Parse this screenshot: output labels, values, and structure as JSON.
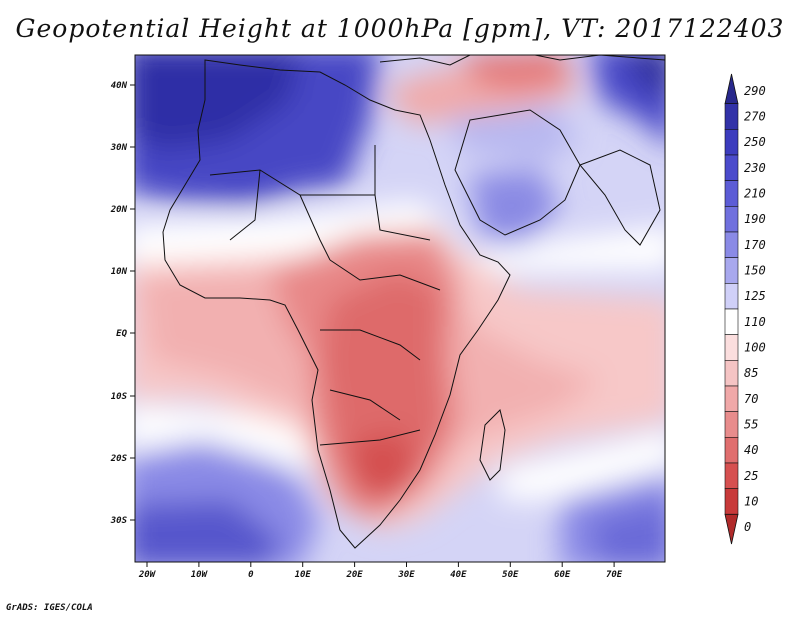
{
  "title": "Geopotential Height at 1000hPa [gpm], VT: 2017122403",
  "credit": "GrADS: IGES/COLA",
  "map": {
    "lat_labels": [
      "40N",
      "30N",
      "20N",
      "10N",
      "EQ",
      "10S",
      "20S",
      "30S"
    ],
    "lon_labels": [
      "20W",
      "10W",
      "0",
      "10E",
      "20E",
      "30E",
      "40E",
      "50E",
      "60E",
      "70E"
    ],
    "extent": {
      "lon": [
        -22,
        80
      ],
      "lat": [
        -37,
        45
      ]
    }
  },
  "colorbar": {
    "levels": [
      "290",
      "270",
      "250",
      "230",
      "210",
      "190",
      "170",
      "150",
      "125",
      "110",
      "100",
      "85",
      "70",
      "55",
      "40",
      "25",
      "10",
      "0"
    ],
    "colors": [
      "#28288c",
      "#3232a8",
      "#3c3cbe",
      "#4b4bcc",
      "#5c5cd6",
      "#7070de",
      "#8a8ae6",
      "#a8a8ee",
      "#d0d0f8",
      "#ffffff",
      "#fbdede",
      "#f5c4c4",
      "#f0a8a8",
      "#e88c8c",
      "#e06e6e",
      "#d65050",
      "#c83a3a",
      "#b02a2a"
    ]
  }
}
